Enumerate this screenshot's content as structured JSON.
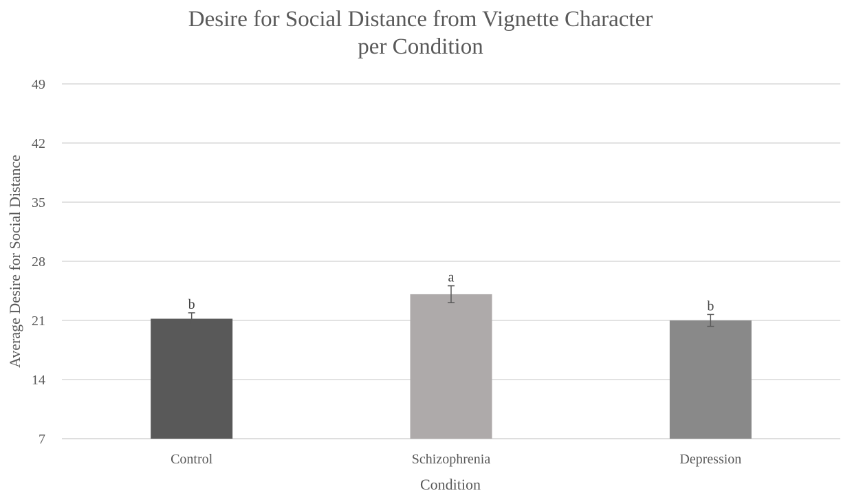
{
  "chart_data": {
    "type": "bar",
    "title_line1": "Desire for Social Distance from Vignette Character",
    "title_line2": "per Condition",
    "xlabel": "Condition",
    "ylabel": "Average Desire for Social Distance",
    "categories": [
      "Control",
      "Schizophrenia",
      "Depression"
    ],
    "values": [
      21.2,
      24.1,
      21.0
    ],
    "error": [
      0.7,
      1.0,
      0.7
    ],
    "annotations": [
      "b",
      "a",
      "b"
    ],
    "colors": [
      "#595959",
      "#aeaaaa",
      "#898989"
    ],
    "ylim": [
      7,
      49
    ],
    "yticks": [
      7,
      14,
      21,
      28,
      35,
      42,
      49
    ],
    "grid": true,
    "legend": "none"
  }
}
